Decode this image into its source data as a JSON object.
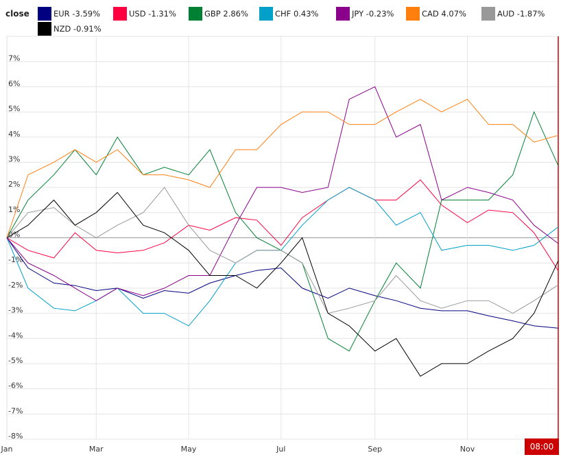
{
  "legend": {
    "title": "close",
    "items": [
      {
        "label": "EUR -3.59%",
        "color": "#000080"
      },
      {
        "label": "USD -1.31%",
        "color": "#ff0040"
      },
      {
        "label": "GBP 2.86%",
        "color": "#008033"
      },
      {
        "label": "CHF 0.43%",
        "color": "#00a0c8"
      },
      {
        "label": "JPY -0.23%",
        "color": "#8b008b"
      },
      {
        "label": "CAD 4.07%",
        "color": "#ff7f0e"
      },
      {
        "label": "AUD -1.87%",
        "color": "#999999"
      },
      {
        "label": "NZD -0.91%",
        "color": "#000000"
      }
    ]
  },
  "time_badge": "08:00",
  "chart_data": {
    "type": "line",
    "ylim": [
      -8,
      8
    ],
    "y_ticks": [
      "7%",
      "6%",
      "5%",
      "4%",
      "3%",
      "2%",
      "1%",
      "0%",
      "-1%",
      "-2%",
      "-3%",
      "-4%",
      "-5%",
      "-6%",
      "-7%",
      "-8%"
    ],
    "x_ticks": [
      "Jan",
      "Mar",
      "May",
      "Jul",
      "Sep",
      "Nov"
    ],
    "grid": true,
    "legend_position": "top",
    "x": [
      "01-01",
      "01-15",
      "02-01",
      "02-15",
      "03-01",
      "03-15",
      "04-01",
      "04-15",
      "05-01",
      "05-15",
      "06-01",
      "06-15",
      "07-01",
      "07-15",
      "08-01",
      "08-15",
      "09-01",
      "09-15",
      "10-01",
      "10-15",
      "11-01",
      "11-15",
      "12-01",
      "12-15",
      "12-31"
    ],
    "series": [
      {
        "name": "EUR",
        "color": "#000080",
        "values": [
          0,
          -1.2,
          -1.8,
          -1.9,
          -2.1,
          -2.0,
          -2.4,
          -2.1,
          -2.2,
          -1.8,
          -1.5,
          -1.3,
          -1.2,
          -2.0,
          -2.4,
          -2.0,
          -2.3,
          -2.5,
          -2.8,
          -2.9,
          -2.9,
          -3.1,
          -3.3,
          -3.5,
          -3.59
        ]
      },
      {
        "name": "USD",
        "color": "#ff0040",
        "values": [
          0,
          -0.5,
          -0.8,
          0.2,
          -0.5,
          -0.6,
          -0.5,
          -0.2,
          0.5,
          0.3,
          0.8,
          0.7,
          -0.3,
          0.8,
          1.5,
          2.0,
          1.5,
          1.5,
          2.3,
          1.3,
          0.6,
          1.1,
          1.0,
          0.2,
          -1.31
        ]
      },
      {
        "name": "GBP",
        "color": "#008033",
        "values": [
          0,
          1.5,
          2.5,
          3.5,
          2.5,
          4.0,
          2.5,
          2.8,
          2.5,
          3.5,
          1.0,
          0.0,
          -0.5,
          -1.0,
          -4.0,
          -4.5,
          -2.5,
          -1.0,
          -2.0,
          1.5,
          1.5,
          1.5,
          2.5,
          5.0,
          2.86
        ]
      },
      {
        "name": "CHF",
        "color": "#00a0c8",
        "values": [
          0,
          -2.0,
          -2.8,
          -2.9,
          -2.5,
          -2.0,
          -3.0,
          -3.0,
          -3.5,
          -2.5,
          -1.0,
          -0.5,
          -0.5,
          0.5,
          1.5,
          2.0,
          1.5,
          0.5,
          1.0,
          -0.5,
          -0.3,
          -0.3,
          -0.5,
          -0.3,
          0.43
        ]
      },
      {
        "name": "JPY",
        "color": "#8b008b",
        "values": [
          0,
          -1.0,
          -1.5,
          -2.0,
          -2.5,
          -2.0,
          -2.3,
          -2.0,
          -1.5,
          -1.5,
          0.5,
          2.0,
          2.0,
          1.8,
          2.0,
          5.5,
          6.0,
          4.0,
          4.5,
          1.5,
          2.0,
          1.8,
          1.5,
          0.5,
          -0.23
        ]
      },
      {
        "name": "CAD",
        "color": "#ff7f0e",
        "values": [
          0,
          2.5,
          3.0,
          3.5,
          3.0,
          3.5,
          2.5,
          2.5,
          2.3,
          2.0,
          3.5,
          3.5,
          4.5,
          5.0,
          5.0,
          4.5,
          4.5,
          5.0,
          5.5,
          5.0,
          5.5,
          4.5,
          4.5,
          3.8,
          4.07
        ]
      },
      {
        "name": "AUD",
        "color": "#999999",
        "values": [
          0,
          1.0,
          1.2,
          0.5,
          0,
          0.5,
          1.0,
          2.0,
          0.5,
          -0.5,
          -1.0,
          -0.5,
          -0.5,
          -1.0,
          -3.0,
          -2.8,
          -2.5,
          -1.5,
          -2.5,
          -2.8,
          -2.5,
          -2.5,
          -3.0,
          -2.5,
          -1.87
        ]
      },
      {
        "name": "NZD",
        "color": "#000000",
        "values": [
          0,
          0.5,
          1.5,
          0.5,
          1.0,
          1.8,
          0.5,
          0.2,
          -0.5,
          -1.5,
          -1.5,
          -2.0,
          -1.0,
          0.0,
          -3.0,
          -3.5,
          -4.5,
          -4.0,
          -5.5,
          -5.0,
          -5.0,
          -4.5,
          -4.0,
          -3.0,
          -0.91
        ]
      }
    ]
  }
}
